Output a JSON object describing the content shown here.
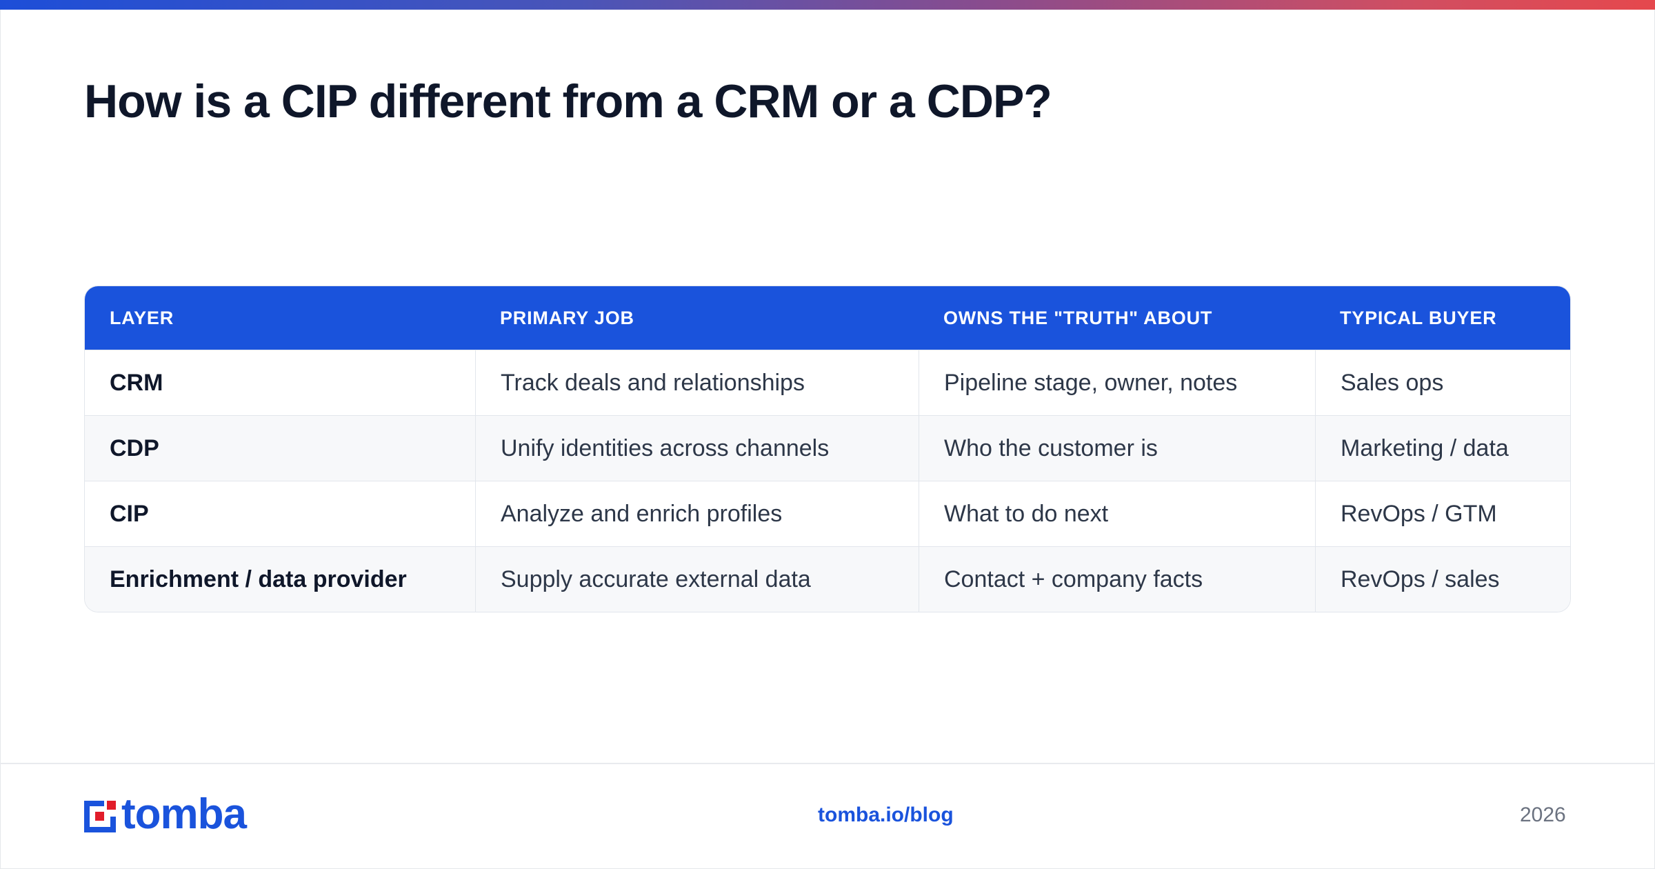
{
  "title": "How is a CIP different from a CRM or a CDP?",
  "table": {
    "headers": [
      "LAYER",
      "PRIMARY JOB",
      "OWNS THE \"TRUTH\" ABOUT",
      "TYPICAL BUYER"
    ],
    "rows": [
      [
        "CRM",
        "Track deals and relationships",
        "Pipeline stage, owner, notes",
        "Sales ops"
      ],
      [
        "CDP",
        "Unify identities across channels",
        "Who the customer is",
        "Marketing / data"
      ],
      [
        "CIP",
        "Analyze and enrich profiles",
        "What to do next",
        "RevOps / GTM"
      ],
      [
        "Enrichment / data provider",
        "Supply accurate external data",
        "Contact + company facts",
        "RevOps / sales"
      ]
    ]
  },
  "footer": {
    "logo_text": "tomba",
    "link": "tomba.io/blog",
    "year": "2026"
  },
  "colors": {
    "accent": "#1a53dc",
    "logo_red": "#e11d2a",
    "title": "#0f172a"
  },
  "icons": {
    "logo": "tomba-logo-icon"
  }
}
